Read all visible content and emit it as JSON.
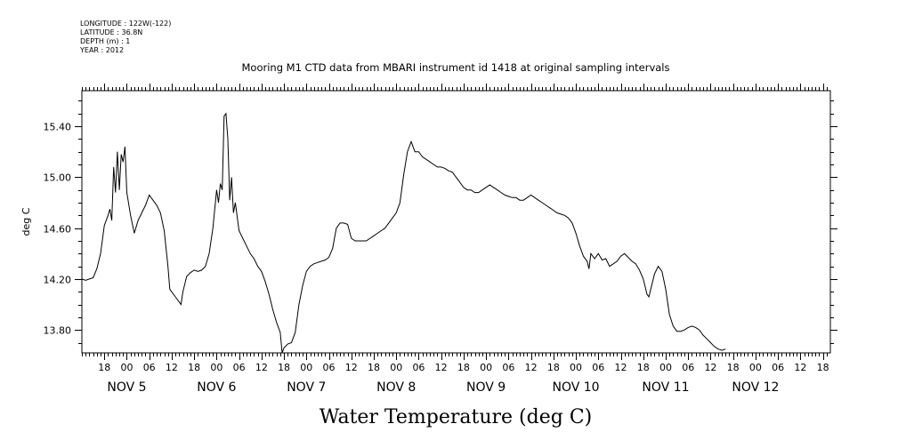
{
  "meta": {
    "longitude": "LONGITUDE : 122W(-122)",
    "latitude": "LATITUDE : 36.8N",
    "depth": "DEPTH (m) : 1",
    "year": "YEAR : 2012"
  },
  "chart_data": {
    "type": "line",
    "title": "Mooring M1 CTD data from MBARI instrument id 1418 at original sampling intervals",
    "xlabel": "",
    "ylabel": "deg C",
    "bottom_title": "Water Temperature (deg C)",
    "x_unit": "hours since NOV 4 12:00",
    "xlim": [
      0,
      200
    ],
    "ylim": [
      13.62,
      15.68
    ],
    "y_ticks": [
      13.8,
      14.2,
      14.6,
      15.0,
      15.4
    ],
    "y_tick_labels": [
      "13.80",
      "14.20",
      "14.60",
      "15.00",
      "15.40"
    ],
    "x_hour_ticks": [
      6,
      12,
      18,
      24,
      30,
      36,
      42,
      48,
      54,
      60,
      66,
      72,
      78,
      84,
      90,
      96,
      102,
      108,
      114,
      120,
      126,
      132,
      138,
      144,
      150,
      156,
      162,
      168,
      174,
      180,
      186,
      192,
      198
    ],
    "x_hour_labels": [
      "18",
      "00",
      "06",
      "12",
      "18",
      "00",
      "06",
      "12",
      "18",
      "00",
      "06",
      "12",
      "18",
      "00",
      "06",
      "12",
      "18",
      "00",
      "06",
      "12",
      "18",
      "00",
      "06",
      "12",
      "18",
      "00",
      "06",
      "12",
      "18",
      "00",
      "06",
      "12",
      "18"
    ],
    "day_labels": [
      {
        "x": 12,
        "label": "NOV  5"
      },
      {
        "x": 36,
        "label": "NOV  6"
      },
      {
        "x": 60,
        "label": "NOV  7"
      },
      {
        "x": 84,
        "label": "NOV  8"
      },
      {
        "x": 108,
        "label": "NOV  9"
      },
      {
        "x": 132,
        "label": "NOV 10"
      },
      {
        "x": 156,
        "label": "NOV 11"
      },
      {
        "x": 180,
        "label": "NOV 12"
      }
    ],
    "series": [
      {
        "values": [
          [
            0,
            14.2
          ],
          [
            1,
            14.19
          ],
          [
            2,
            14.2
          ],
          [
            3,
            14.21
          ],
          [
            4,
            14.28
          ],
          [
            5,
            14.4
          ],
          [
            6,
            14.62
          ],
          [
            7,
            14.7
          ],
          [
            7.5,
            14.75
          ],
          [
            8,
            14.66
          ],
          [
            8.5,
            15.08
          ],
          [
            9,
            14.88
          ],
          [
            9.5,
            15.2
          ],
          [
            10,
            14.9
          ],
          [
            10.5,
            15.18
          ],
          [
            11,
            15.12
          ],
          [
            11.5,
            15.24
          ],
          [
            12,
            14.88
          ],
          [
            13,
            14.7
          ],
          [
            14,
            14.56
          ],
          [
            15,
            14.66
          ],
          [
            16,
            14.72
          ],
          [
            17,
            14.78
          ],
          [
            18,
            14.86
          ],
          [
            19,
            14.82
          ],
          [
            20,
            14.78
          ],
          [
            21,
            14.72
          ],
          [
            22,
            14.58
          ],
          [
            23,
            14.3
          ],
          [
            23.5,
            14.12
          ],
          [
            24,
            14.1
          ],
          [
            25,
            14.06
          ],
          [
            26,
            14.02
          ],
          [
            26.5,
            14
          ],
          [
            27,
            14.1
          ],
          [
            28,
            14.22
          ],
          [
            29,
            14.25
          ],
          [
            30,
            14.27
          ],
          [
            31,
            14.26
          ],
          [
            32,
            14.27
          ],
          [
            33,
            14.3
          ],
          [
            34,
            14.4
          ],
          [
            35,
            14.6
          ],
          [
            36,
            14.9
          ],
          [
            36.5,
            14.8
          ],
          [
            37,
            14.95
          ],
          [
            37.5,
            14.9
          ],
          [
            38,
            15.48
          ],
          [
            38.5,
            15.5
          ],
          [
            39,
            15.3
          ],
          [
            39.5,
            14.82
          ],
          [
            40,
            15
          ],
          [
            40.5,
            14.72
          ],
          [
            41,
            14.8
          ],
          [
            42,
            14.58
          ],
          [
            43,
            14.52
          ],
          [
            44,
            14.46
          ],
          [
            45,
            14.4
          ],
          [
            46,
            14.36
          ],
          [
            47,
            14.3
          ],
          [
            48,
            14.26
          ],
          [
            49,
            14.18
          ],
          [
            50,
            14.08
          ],
          [
            51,
            13.96
          ],
          [
            52,
            13.86
          ],
          [
            53,
            13.78
          ],
          [
            53.5,
            13.62
          ],
          [
            54,
            13.66
          ],
          [
            55,
            13.69
          ],
          [
            56,
            13.7
          ],
          [
            57,
            13.78
          ],
          [
            58,
            14
          ],
          [
            59,
            14.15
          ],
          [
            60,
            14.26
          ],
          [
            61,
            14.3
          ],
          [
            62,
            14.32
          ],
          [
            63,
            14.33
          ],
          [
            64,
            14.34
          ],
          [
            65,
            14.35
          ],
          [
            66,
            14.37
          ],
          [
            67,
            14.44
          ],
          [
            68,
            14.6
          ],
          [
            69,
            14.64
          ],
          [
            70,
            14.64
          ],
          [
            71,
            14.63
          ],
          [
            72,
            14.52
          ],
          [
            73,
            14.5
          ],
          [
            74,
            14.5
          ],
          [
            75,
            14.5
          ],
          [
            76,
            14.5
          ],
          [
            77,
            14.52
          ],
          [
            78,
            14.54
          ],
          [
            79,
            14.56
          ],
          [
            80,
            14.58
          ],
          [
            81,
            14.6
          ],
          [
            82,
            14.64
          ],
          [
            83,
            14.68
          ],
          [
            84,
            14.72
          ],
          [
            85,
            14.8
          ],
          [
            86,
            15.02
          ],
          [
            87,
            15.2
          ],
          [
            88,
            15.28
          ],
          [
            89,
            15.2
          ],
          [
            90,
            15.2
          ],
          [
            91,
            15.16
          ],
          [
            92,
            15.14
          ],
          [
            93,
            15.12
          ],
          [
            94,
            15.1
          ],
          [
            95,
            15.08
          ],
          [
            96,
            15.08
          ],
          [
            97,
            15.07
          ],
          [
            98,
            15.05
          ],
          [
            99,
            15.04
          ],
          [
            100,
            15
          ],
          [
            101,
            14.96
          ],
          [
            102,
            14.92
          ],
          [
            103,
            14.9
          ],
          [
            104,
            14.9
          ],
          [
            105,
            14.88
          ],
          [
            106,
            14.88
          ],
          [
            107,
            14.9
          ],
          [
            108,
            14.92
          ],
          [
            109,
            14.94
          ],
          [
            110,
            14.92
          ],
          [
            111,
            14.9
          ],
          [
            112,
            14.88
          ],
          [
            113,
            14.86
          ],
          [
            114,
            14.85
          ],
          [
            115,
            14.84
          ],
          [
            116,
            14.84
          ],
          [
            117,
            14.82
          ],
          [
            118,
            14.82
          ],
          [
            119,
            14.84
          ],
          [
            120,
            14.86
          ],
          [
            121,
            14.84
          ],
          [
            122,
            14.82
          ],
          [
            123,
            14.8
          ],
          [
            124,
            14.78
          ],
          [
            125,
            14.76
          ],
          [
            126,
            14.74
          ],
          [
            127,
            14.72
          ],
          [
            128,
            14.71
          ],
          [
            129,
            14.7
          ],
          [
            130,
            14.68
          ],
          [
            131,
            14.64
          ],
          [
            132,
            14.56
          ],
          [
            133,
            14.46
          ],
          [
            134,
            14.38
          ],
          [
            135,
            14.34
          ],
          [
            135.5,
            14.28
          ],
          [
            136,
            14.4
          ],
          [
            137,
            14.36
          ],
          [
            138,
            14.4
          ],
          [
            139,
            14.35
          ],
          [
            140,
            14.36
          ],
          [
            141,
            14.3
          ],
          [
            142,
            14.32
          ],
          [
            143,
            14.34
          ],
          [
            144,
            14.38
          ],
          [
            145,
            14.4
          ],
          [
            146,
            14.37
          ],
          [
            147,
            14.34
          ],
          [
            148,
            14.32
          ],
          [
            149,
            14.27
          ],
          [
            150,
            14.2
          ],
          [
            151,
            14.08
          ],
          [
            151.5,
            14.06
          ],
          [
            152,
            14.12
          ],
          [
            153,
            14.24
          ],
          [
            154,
            14.3
          ],
          [
            155,
            14.26
          ],
          [
            156,
            14.12
          ],
          [
            157,
            13.92
          ],
          [
            158,
            13.83
          ],
          [
            159,
            13.79
          ],
          [
            160,
            13.79
          ],
          [
            161,
            13.8
          ],
          [
            162,
            13.82
          ],
          [
            163,
            13.83
          ],
          [
            164,
            13.82
          ],
          [
            165,
            13.8
          ],
          [
            166,
            13.76
          ],
          [
            167,
            13.73
          ],
          [
            168,
            13.7
          ],
          [
            169,
            13.67
          ],
          [
            170,
            13.65
          ],
          [
            171,
            13.64
          ],
          [
            172,
            13.65
          ]
        ]
      }
    ]
  }
}
